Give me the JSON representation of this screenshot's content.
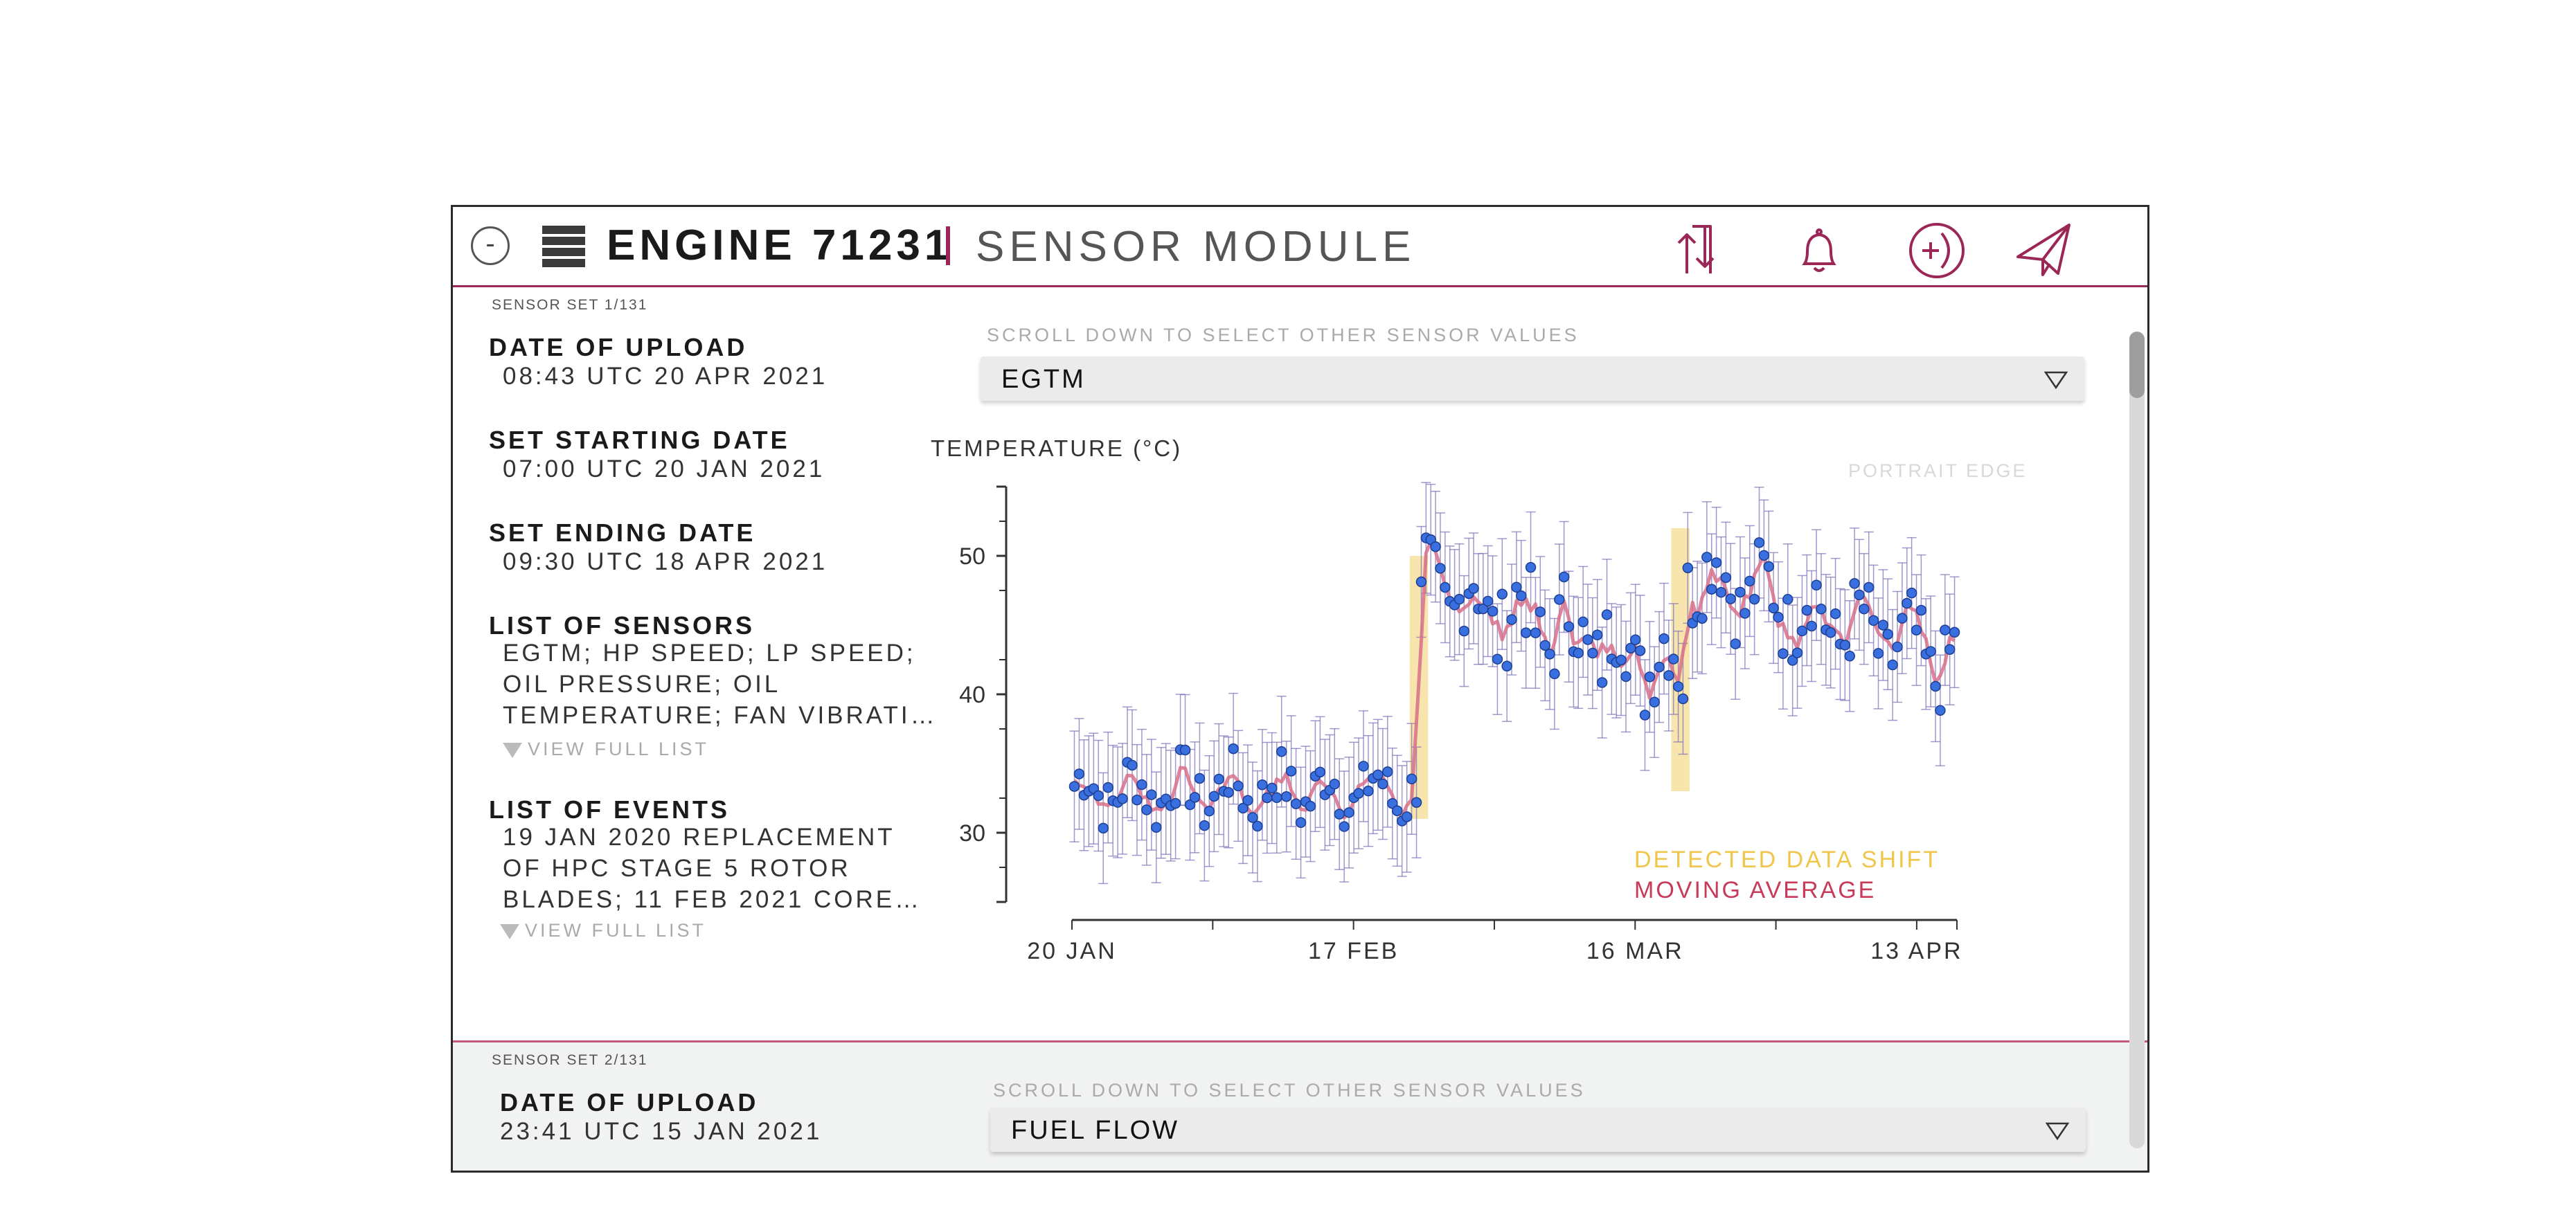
{
  "header": {
    "collapse_label": "-",
    "title": "ENGINE 71231",
    "subtitle": "SENSOR MODULE",
    "icons": [
      "sort-arrows-icon",
      "bell-icon",
      "add-circle-icon",
      "send-icon"
    ]
  },
  "sets": [
    {
      "set_label": "SENSOR SET 1/131",
      "date_of_upload_label": "DATE OF UPLOAD",
      "date_of_upload": "08:43 UTC 20 APR 2021",
      "start_label": "SET STARTING DATE",
      "start": "07:00 UTC 20 JAN 2021",
      "end_label": "SET ENDING DATE",
      "end": "09:30 UTC 18 APR 2021",
      "sensors_label": "LIST OF SENSORS",
      "sensors_lines": [
        "EGTM; HP SPEED; LP SPEED;",
        "OIL PRESSURE; OIL",
        "TEMPERATURE; FAN VIBRATI…"
      ],
      "events_label": "LIST OF EVENTS",
      "events_lines": [
        "19 JAN 2020 REPLACEMENT",
        "OF HPC STAGE 5 ROTOR",
        "BLADES; 11 FEB 2021 CORE…"
      ],
      "view_full_list": "VIEW FULL LIST",
      "hint": "SCROLL DOWN TO SELECT OTHER SENSOR VALUES",
      "selected_sensor": "EGTM"
    },
    {
      "set_label": "SENSOR SET 2/131",
      "date_of_upload_label": "DATE OF UPLOAD",
      "date_of_upload": "23:41 UTC 15 JAN 2021",
      "hint": "SCROLL DOWN TO SELECT OTHER SENSOR VALUES",
      "selected_sensor": "FUEL FLOW"
    }
  ],
  "colors": {
    "accent": "#9b2757",
    "points": "#3a6fe0",
    "moving_average": "#d9708a",
    "shift": "#f5c970",
    "error_bars": "#7a6fb8"
  },
  "chart_data": {
    "type": "scatter",
    "ylabel": "TEMPERATURE (°C)",
    "watermark": "PORTRAIT EDGE",
    "yticks": [
      30,
      40,
      50
    ],
    "ylim": [
      25,
      55
    ],
    "xticks": [
      "20 JAN",
      "17 FEB",
      "16 MAR",
      "13 APR"
    ],
    "x_range_days": [
      0,
      88
    ],
    "legend": [
      {
        "label": "DETECTED DATA SHIFT",
        "color": "#f0c64a"
      },
      {
        "label": "MOVING AVERAGE",
        "color": "#c83a5a"
      }
    ],
    "shifts": [
      {
        "from": 34,
        "to": 35,
        "y_low": 31,
        "y_high": 50
      },
      {
        "from": 60,
        "to": 61,
        "y_low": 33,
        "y_high": 52
      }
    ],
    "segments": [
      {
        "from": 0,
        "to": 34.5,
        "mean": 33,
        "amp": 2.5
      },
      {
        "from": 34.5,
        "to": 61,
        "mean": 46,
        "amp": 4,
        "trend": -6
      },
      {
        "from": 61,
        "to": 88,
        "mean": 47,
        "amp": 3.5,
        "trend": -7
      }
    ],
    "error_bar": 4
  }
}
